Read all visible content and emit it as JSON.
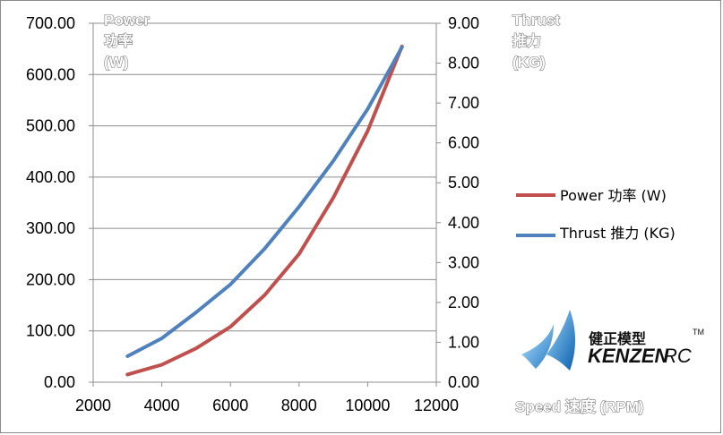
{
  "chart_data": {
    "type": "line",
    "x": [
      3000,
      4000,
      5000,
      6000,
      7000,
      8000,
      9000,
      10000,
      11000
    ],
    "xlim": [
      2000,
      12000
    ],
    "xticks": [
      "2000",
      "4000",
      "6000",
      "8000",
      "10000",
      "12000"
    ],
    "xlabel": "Speed 速度 (RPM)",
    "left_axis": {
      "title": [
        "Power",
        "功率",
        "(W)"
      ],
      "ylim": [
        0,
        700
      ],
      "ticks": [
        "0.00",
        "100.00",
        "200.00",
        "300.00",
        "400.00",
        "500.00",
        "600.00",
        "700.00"
      ]
    },
    "right_axis": {
      "title": [
        "Thrust",
        "推力",
        "(KG)"
      ],
      "ylim": [
        0,
        9
      ],
      "ticks": [
        "0.00",
        "1.00",
        "2.00",
        "3.00",
        "4.00",
        "5.00",
        "6.00",
        "7.00",
        "8.00",
        "9.00"
      ]
    },
    "series": [
      {
        "name": "Power 功率 (W)",
        "axis": "left",
        "color": "#c0504d",
        "values": [
          15,
          34,
          66,
          108,
          170,
          250,
          360,
          490,
          655
        ]
      },
      {
        "name": "Thrust  推力 (KG)",
        "axis": "right",
        "color": "#4f81bd",
        "values": [
          0.65,
          1.1,
          1.75,
          2.45,
          3.35,
          4.4,
          5.55,
          6.85,
          8.4
        ]
      }
    ],
    "grid": "horizontal",
    "legend_position": "right"
  },
  "logo": {
    "cn": "健正模型",
    "en": "KENZEN",
    "rc": "RC",
    "tm": "TM"
  }
}
